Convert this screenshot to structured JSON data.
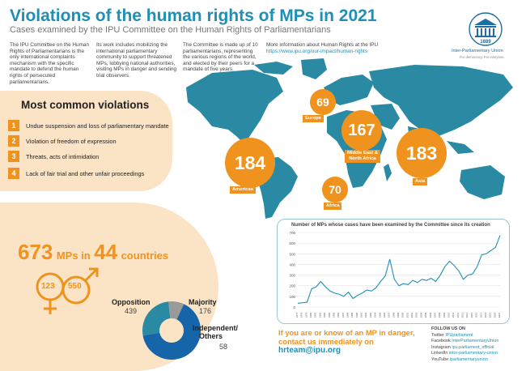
{
  "header": {
    "title": "Violations of the human rights of MPs in 2021",
    "subtitle": "Cases examined by the IPU Committee on the Human Rights of Parliamentarians"
  },
  "intro": {
    "col1": "The IPU Committee on the Human Rights of Parliamentarians is the only international complaints mechanism with the specific mandate to defend the human rights of persecuted parliamentarians.",
    "col2": "Its work includes mobilizing the international parliamentary community to support threatened MPs, lobbying national authorities, visiting MPs in danger and sending trial observers.",
    "col3": "The Committee is made up of 10 parliamentarians, representing the various regions of the world, and elected by their peers for a mandate of five years.",
    "col4_title": "More information about Human Rights at the IPU",
    "col4_link": "https://www.ipu.org/our-impact/human-rights"
  },
  "logo": {
    "year": "1889",
    "name": "Inter-Parliamentary Union",
    "tagline": "For democracy. For everyone."
  },
  "violations": {
    "title": "Most common violations",
    "items": [
      {
        "num": "1",
        "text": "Undue suspension and loss of parliamentary mandate"
      },
      {
        "num": "2",
        "text": "Violation of freedom of expression"
      },
      {
        "num": "3",
        "text": "Threats, acts of intimidation"
      },
      {
        "num": "4",
        "text": "Lack of fair trial and other unfair proceedings"
      }
    ]
  },
  "regions": [
    {
      "value": "184",
      "label": "Americas"
    },
    {
      "value": "69",
      "label": "Europe"
    },
    {
      "value": "167",
      "label": "Middle East & North Africa"
    },
    {
      "value": "183",
      "label": "Asia"
    },
    {
      "value": "70",
      "label": "Africa"
    }
  ],
  "stats": {
    "mps_value": "673",
    "mps_unit": "MPs in",
    "countries_value": "44",
    "countries_unit": "countries",
    "women": "123",
    "men": "550"
  },
  "affiliation": {
    "opposition_label": "Opposition",
    "opposition_value": "439",
    "majority_label": "Majority",
    "majority_value": "176",
    "independent_label": "Independent/",
    "independent_label2": "Others",
    "independent_value": "58"
  },
  "colors": {
    "orange": "#f0931e",
    "blue": "#1e8fb5",
    "dark_blue": "#1565a8",
    "grey": "#9a9a9a",
    "map_teal": "#2a8aa3"
  },
  "chart_data": {
    "type": "line",
    "title": "Number of MPs whose cases have been examined by the Committee since its creation",
    "ylim": [
      0,
      700
    ],
    "yticks": [
      "0",
      "100",
      "200",
      "300",
      "400",
      "500",
      "600",
      "700"
    ],
    "x": [
      1977,
      1978,
      1979,
      1980,
      1981,
      1982,
      1983,
      1984,
      1985,
      1986,
      1987,
      1988,
      1989,
      1990,
      1991,
      1992,
      1993,
      1994,
      1995,
      1996,
      1997,
      1998,
      1999,
      2000,
      2001,
      2002,
      2003,
      2004,
      2005,
      2006,
      2007,
      2008,
      2009,
      2010,
      2011,
      2012,
      2013,
      2014,
      2015,
      2016,
      2017,
      2018,
      2019,
      2020,
      2021
    ],
    "series": [
      {
        "values": [
          35,
          40,
          45,
          170,
          190,
          240,
          190,
          150,
          130,
          120,
          100,
          140,
          80,
          110,
          130,
          160,
          150,
          180,
          240,
          290,
          450,
          260,
          200,
          220,
          210,
          250,
          230,
          260,
          250,
          270,
          240,
          300,
          380,
          430,
          390,
          340,
          260,
          300,
          310,
          380,
          490,
          500,
          530,
          560,
          673
        ]
      }
    ],
    "grid": true
  },
  "contact": {
    "line1": "If you are or know of an MP in danger,",
    "line2": "contact us immediately on",
    "email": "hrteam@ipu.org"
  },
  "follow": {
    "title": "FOLLOW US ON",
    "items": [
      {
        "network": "Twitter",
        "handle": "IPUparliament"
      },
      {
        "network": "Facebook",
        "handle": "InterParliamentaryUnion"
      },
      {
        "network": "Instagram",
        "handle": "ipu.parliament_official"
      },
      {
        "network": "LinkedIn",
        "handle": "inter-parliamentary-union"
      },
      {
        "network": "YouTube",
        "handle": "iparliamentaryunion"
      }
    ]
  }
}
